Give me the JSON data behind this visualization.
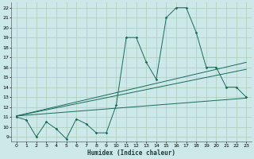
{
  "xlabel": "Humidex (Indice chaleur)",
  "xlim": [
    -0.5,
    23.5
  ],
  "ylim": [
    8.5,
    22.5
  ],
  "xticks": [
    0,
    1,
    2,
    3,
    4,
    5,
    6,
    7,
    8,
    9,
    10,
    11,
    12,
    13,
    14,
    15,
    16,
    17,
    18,
    19,
    20,
    21,
    22,
    23
  ],
  "yticks": [
    9,
    10,
    11,
    12,
    13,
    14,
    15,
    16,
    17,
    18,
    19,
    20,
    21,
    22
  ],
  "bg_color": "#cce8e8",
  "grid_color": "#aaccbb",
  "line_color": "#1a6b5a",
  "series1_x": [
    0,
    1,
    2,
    3,
    4,
    5,
    6,
    7,
    8,
    9,
    10,
    11,
    12,
    13,
    14,
    15,
    16,
    17,
    18,
    19,
    20,
    21,
    22,
    23
  ],
  "series1_y": [
    11,
    10.7,
    9,
    10.5,
    9.8,
    8.8,
    10.8,
    10.3,
    9.4,
    9.4,
    12.2,
    19,
    19,
    16.5,
    14.8,
    21,
    22,
    22,
    19.5,
    16,
    16,
    14,
    14,
    13
  ],
  "series2_x": [
    0,
    23
  ],
  "series2_y": [
    11.1,
    12.9
  ],
  "series3_x": [
    0,
    23
  ],
  "series3_y": [
    11.1,
    15.8
  ],
  "series4_x": [
    0,
    23
  ],
  "series4_y": [
    11.1,
    16.5
  ]
}
